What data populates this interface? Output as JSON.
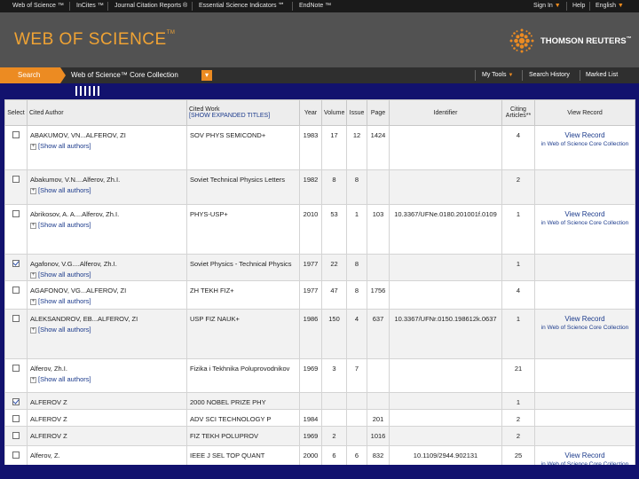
{
  "topnav": {
    "left": [
      {
        "label": "Web of Science ™",
        "caret": false
      },
      {
        "label": "InCites ™",
        "caret": false
      },
      {
        "label": "Journal Citation Reports ®",
        "caret": false
      },
      {
        "label": "Essential Science Indicators ℠",
        "caret": false
      },
      {
        "label": "EndNote ™",
        "caret": false
      }
    ],
    "sign_in": "Sign In",
    "help": "Help",
    "language": "English"
  },
  "header": {
    "logo_text": "WEB OF SCIENCE",
    "logo_tm": "TM",
    "brand": "THOMSON REUTERS",
    "brand_tm": "™"
  },
  "nav": {
    "search_tab": "Search",
    "collection": "Web of Science™ Core Collection",
    "collection_dropdown_icon": "chevron-down-icon",
    "my_tools": "My Tools",
    "search_history": "Search History",
    "marked_list": "Marked List"
  },
  "colors": {
    "accent_orange": "#ec8b22",
    "header_grey": "#525252",
    "frame_blue": "#12126e",
    "link_blue": "#1c3b8c"
  },
  "table": {
    "headers": {
      "select": "Select",
      "cited_author": "Cited Author",
      "cited_work": "Cited Work",
      "expanded_titles": "[SHOW EXPANDED TITLES]",
      "year": "Year",
      "volume": "Volume",
      "issue": "Issue",
      "page": "Page",
      "identifier": "Identifier",
      "citing_articles": "Citing Articles",
      "citing_marker": "**",
      "view_record": "View Record"
    },
    "show_all_label": "[Show all authors]",
    "view_record_link": "View Record",
    "view_record_sub": "in Web of Science Core Collection",
    "rows": [
      {
        "checked": false,
        "author": "ABAKUMOV, VN...ALFEROV, ZI",
        "show_all": true,
        "work": "SOV PHYS SEMICOND+",
        "year": "1983",
        "volume": "17",
        "issue": "12",
        "page": "1424",
        "identifier": "",
        "citing": "4",
        "view_record": true
      },
      {
        "checked": false,
        "author": "Abakumov, V.N....Alferov, Zh.I.",
        "show_all": true,
        "work": "Soviet Technical Physics Letters",
        "year": "1982",
        "volume": "8",
        "issue": "8",
        "page": "",
        "identifier": "",
        "citing": "2",
        "view_record": false
      },
      {
        "checked": false,
        "author": "Abrikosov, A. A....Alferov, Zh.I.",
        "show_all": true,
        "work": "PHYS-USP+",
        "year": "2010",
        "volume": "53",
        "issue": "1",
        "page": "103",
        "identifier": "10.3367/UFNe.0180.201001f.0109",
        "citing": "1",
        "view_record": true
      },
      {
        "checked": true,
        "author": "Agafonov, V.G....Alferov, Zh.I.",
        "show_all": true,
        "work": "Soviet Physics - Technical Physics",
        "year": "1977",
        "volume": "22",
        "issue": "8",
        "page": "",
        "identifier": "",
        "citing": "1",
        "view_record": false
      },
      {
        "checked": false,
        "author": "AGAFONOV, VG...ALFEROV, ZI",
        "show_all": true,
        "work": "ZH TEKH FIZ+",
        "year": "1977",
        "volume": "47",
        "issue": "8",
        "page": "1756",
        "identifier": "",
        "citing": "4",
        "view_record": false
      },
      {
        "checked": false,
        "author": "ALEKSANDROV, EB...ALFEROV, ZI",
        "show_all": true,
        "work": "USP FIZ NAUK+",
        "year": "1986",
        "volume": "150",
        "issue": "4",
        "page": "637",
        "identifier": "10.3367/UFNr.0150.198612k.0637",
        "citing": "1",
        "view_record": true
      },
      {
        "checked": false,
        "author": "Alferov, Zh.I.",
        "show_all": true,
        "work": "Fizika i Tekhnika Poluprovodnikov",
        "year": "1969",
        "volume": "3",
        "issue": "7",
        "page": "",
        "identifier": "",
        "citing": "21",
        "view_record": false
      },
      {
        "checked": true,
        "author": "ALFEROV Z",
        "show_all": false,
        "work": "2000 NOBEL PRIZE PHY",
        "year": "",
        "volume": "",
        "issue": "",
        "page": "",
        "identifier": "",
        "citing": "1",
        "view_record": false
      },
      {
        "checked": false,
        "author": "ALFEROV Z",
        "show_all": false,
        "work": "ADV SCI TECHNOLOGY P",
        "year": "1984",
        "volume": "",
        "issue": "",
        "page": "201",
        "identifier": "",
        "citing": "2",
        "view_record": false
      },
      {
        "checked": false,
        "author": "ALFEROV Z",
        "show_all": false,
        "work": "FIZ TEKH POLUPROV",
        "year": "1969",
        "volume": "2",
        "issue": "",
        "page": "1016",
        "identifier": "",
        "citing": "2",
        "view_record": false
      },
      {
        "checked": false,
        "author": "Alferov, Z.",
        "show_all": false,
        "work": "IEEE J SEL TOP QUANT",
        "year": "2000",
        "volume": "6",
        "issue": "6",
        "page": "832",
        "identifier": "10.1109/2944.902131",
        "citing": "25",
        "view_record": true
      }
    ]
  }
}
